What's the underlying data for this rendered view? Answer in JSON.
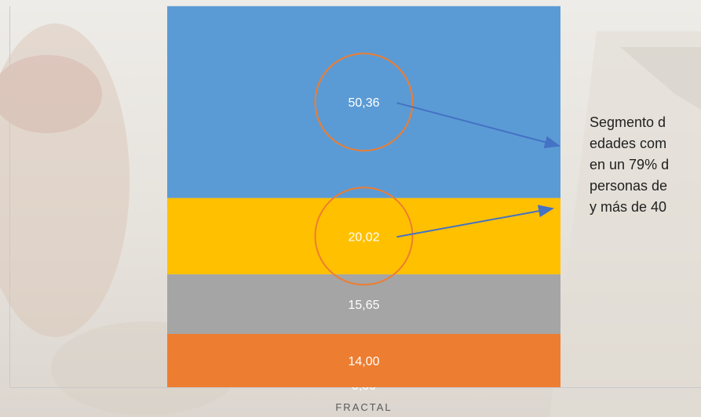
{
  "chart_data": {
    "type": "bar",
    "stacked": true,
    "categories": [
      "FRACTAL"
    ],
    "series": [
      {
        "values": [
          0.0
        ],
        "label": "0,00",
        "color": "#4472c4"
      },
      {
        "values": [
          14.0
        ],
        "label": "14,00",
        "color": "#ed7d31"
      },
      {
        "values": [
          15.65
        ],
        "label": "15,65",
        "color": "#a5a5a5"
      },
      {
        "values": [
          20.02
        ],
        "label": "20,02",
        "color": "#ffc000"
      },
      {
        "values": [
          50.36
        ],
        "label": "50,36",
        "color": "#5b9bd5"
      }
    ],
    "ylim": [
      0,
      100
    ],
    "grid": false,
    "highlighted_values": [
      "50,36",
      "20,02"
    ],
    "highlight_color": "#ed7d31",
    "arrow_color": "#4472c4"
  },
  "annotation": {
    "lines": [
      "Segmento d",
      "edades com",
      "en un 79% d",
      "personas de",
      "y más de 40"
    ]
  }
}
